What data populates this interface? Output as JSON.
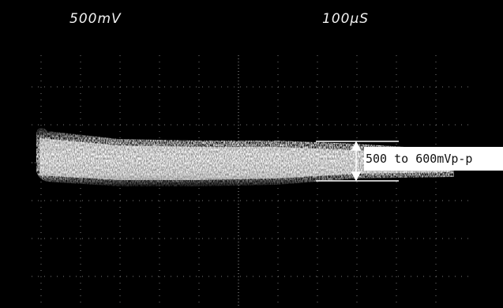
{
  "scope": {
    "volts_per_div": "500mV",
    "time_per_div": "100µS",
    "measurement_label": "500 to 600mVp-p"
  },
  "colors": {
    "background": "#000000",
    "trace": "#f0f0f0",
    "graticule": "#8a8a8a",
    "annotation_bg": "#ffffff",
    "annotation_text": "#111111"
  }
}
